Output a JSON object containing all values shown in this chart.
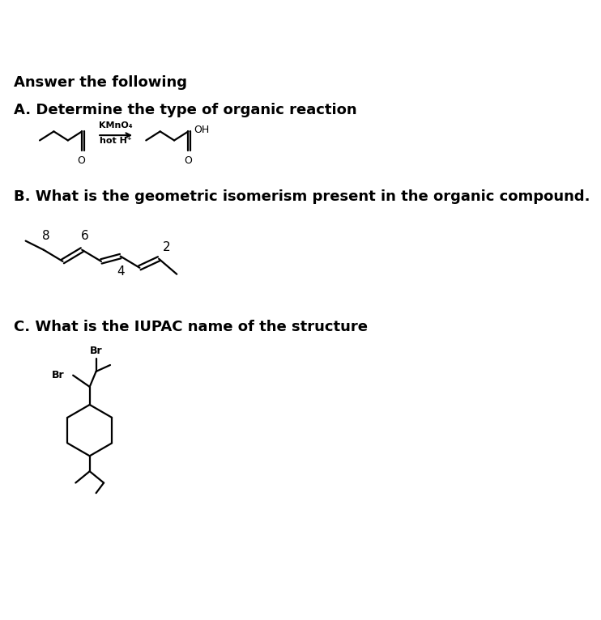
{
  "title": "Answer the following",
  "q_a": "A. Determine the type of organic reaction",
  "q_b": "B. What is the geometric isomerism present in the organic compound.",
  "q_c": "C. What is the IUPAC name of the structure",
  "bg_color": "#ffffff",
  "text_color": "#000000",
  "title_fontsize": 13,
  "question_fontsize": 13
}
